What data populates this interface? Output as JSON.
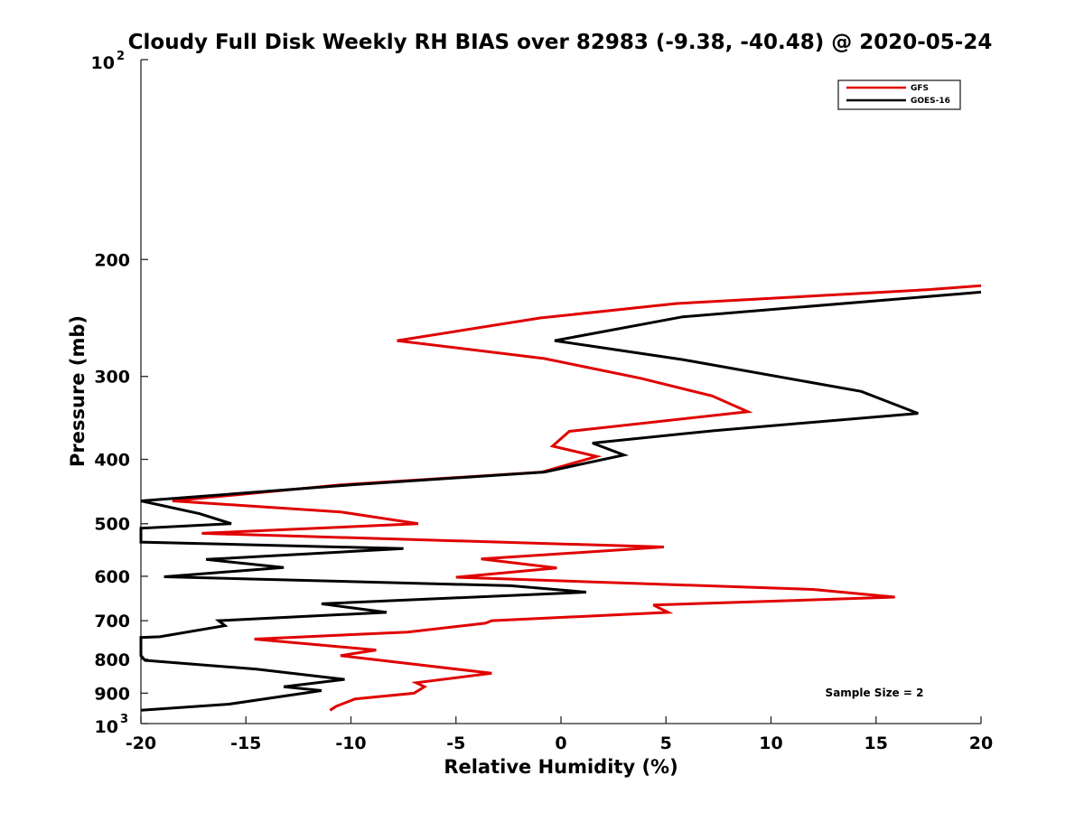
{
  "chart_data": {
    "type": "line",
    "title": "Cloudy Full Disk Weekly RH BIAS over 82983 (-9.38, -40.48) @ 2020-05-24",
    "xlabel": "Relative Humidity (%)",
    "ylabel": "Pressure (mb)",
    "xlim": [
      -20,
      20
    ],
    "ylim": [
      100,
      1000
    ],
    "yscale": "log",
    "y_reversed": true,
    "x_ticks": [
      -20,
      -15,
      -10,
      -5,
      0,
      5,
      10,
      15,
      20
    ],
    "x_tick_labels": [
      "-20",
      "-15",
      "-10",
      "-5",
      "0",
      "5",
      "10",
      "15",
      "20"
    ],
    "y_ticks": [
      200,
      300,
      400,
      500,
      600,
      700,
      800,
      900
    ],
    "y_tick_labels": [
      "200",
      "300",
      "400",
      "500",
      "600",
      "700",
      "800",
      "900"
    ],
    "y_top_label": {
      "base": "10",
      "exp": "2"
    },
    "y_bottom_label": {
      "base": "10",
      "exp": "3"
    },
    "grid": false,
    "legend_position": "top-right",
    "annotation": "Sample Size = 2",
    "series": [
      {
        "name": "GFS",
        "color": "#e00000",
        "points": [
          [
            20.0,
            219
          ],
          [
            17.5,
            222
          ],
          [
            5.5,
            233
          ],
          [
            -1.0,
            245
          ],
          [
            -7.8,
            265
          ],
          [
            -0.8,
            282
          ],
          [
            3.8,
            302
          ],
          [
            7.2,
            321
          ],
          [
            8.9,
            339
          ],
          [
            0.4,
            363
          ],
          [
            -0.4,
            382
          ],
          [
            1.7,
            396
          ],
          [
            -0.9,
            418
          ],
          [
            -10.5,
            437
          ],
          [
            -18.5,
            462
          ],
          [
            -10.5,
            480
          ],
          [
            -6.8,
            500
          ],
          [
            -17.1,
            517
          ],
          [
            4.9,
            542
          ],
          [
            -3.8,
            565
          ],
          [
            -0.2,
            583
          ],
          [
            -5.0,
            602
          ],
          [
            12.0,
            628
          ],
          [
            15.9,
            645
          ],
          [
            4.4,
            663
          ],
          [
            5.1,
            680
          ],
          [
            -3.3,
            700
          ],
          [
            -3.6,
            706
          ],
          [
            -7.3,
            728
          ],
          [
            -14.6,
            746
          ],
          [
            -8.8,
            775
          ],
          [
            -10.5,
            790
          ],
          [
            -3.3,
            840
          ],
          [
            -6.9,
            868
          ],
          [
            -6.5,
            880
          ],
          [
            -7.0,
            900
          ],
          [
            -9.8,
            918
          ],
          [
            -10.7,
            942
          ],
          [
            -11.0,
            955
          ]
        ]
      },
      {
        "name": "GOES-16",
        "color": "#000000",
        "points": [
          [
            20.0,
            224
          ],
          [
            5.8,
            244
          ],
          [
            -0.3,
            265
          ],
          [
            5.8,
            283
          ],
          [
            14.3,
            316
          ],
          [
            17.0,
            341
          ],
          [
            7.3,
            362
          ],
          [
            1.5,
            378
          ],
          [
            3.0,
            394
          ],
          [
            -0.8,
            418
          ],
          [
            -10.0,
            437
          ],
          [
            -20.0,
            462
          ],
          [
            -17.2,
            483
          ],
          [
            -15.7,
            500
          ],
          [
            -20.0,
            508
          ],
          [
            -20.0,
            533
          ],
          [
            -7.5,
            545
          ],
          [
            -16.9,
            566
          ],
          [
            -13.2,
            582
          ],
          [
            -18.9,
            601
          ],
          [
            -2.4,
            620
          ],
          [
            1.2,
            634
          ],
          [
            -11.4,
            660
          ],
          [
            -8.3,
            680
          ],
          [
            -16.3,
            700
          ],
          [
            -16.0,
            712
          ],
          [
            -19.1,
            740
          ],
          [
            -20.0,
            742
          ],
          [
            -20.0,
            790
          ],
          [
            -19.8,
            803
          ],
          [
            -14.5,
            828
          ],
          [
            -10.3,
            858
          ],
          [
            -13.2,
            880
          ],
          [
            -11.4,
            892
          ],
          [
            -15.8,
            935
          ],
          [
            -20.0,
            955
          ]
        ]
      }
    ]
  }
}
